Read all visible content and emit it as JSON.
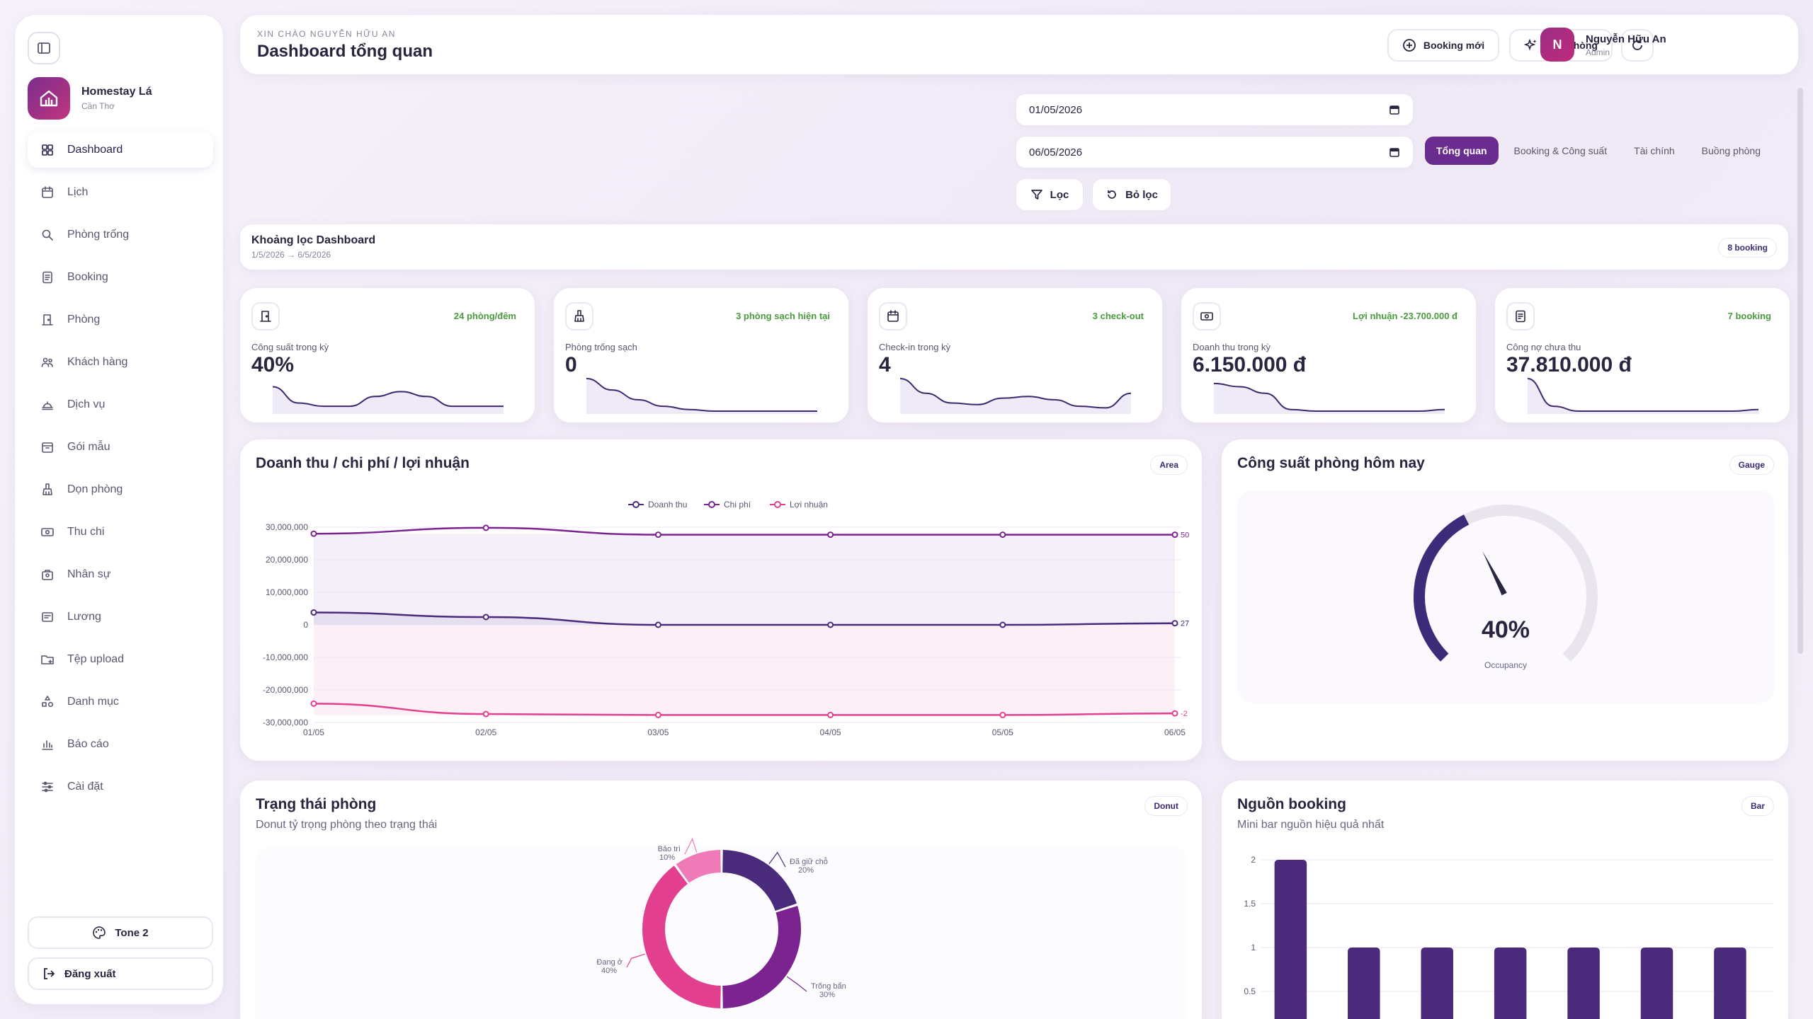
{
  "sidebar": {
    "brand_name": "Homestay Lá",
    "brand_sub": "Cần Thơ",
    "items": [
      {
        "label": "Dashboard",
        "icon": "grid-icon"
      },
      {
        "label": "Lịch",
        "icon": "calendar-icon"
      },
      {
        "label": "Phòng trống",
        "icon": "search-icon"
      },
      {
        "label": "Booking",
        "icon": "booking-icon"
      },
      {
        "label": "Phòng",
        "icon": "door-icon"
      },
      {
        "label": "Khách hàng",
        "icon": "users-icon"
      },
      {
        "label": "Dịch vụ",
        "icon": "service-icon"
      },
      {
        "label": "Gói mẫu",
        "icon": "package-icon"
      },
      {
        "label": "Dọn phòng",
        "icon": "cleaning-icon"
      },
      {
        "label": "Thu chi",
        "icon": "money-icon"
      },
      {
        "label": "Nhân sự",
        "icon": "staff-icon"
      },
      {
        "label": "Lương",
        "icon": "salary-icon"
      },
      {
        "label": "Tệp upload",
        "icon": "folder-icon"
      },
      {
        "label": "Danh mục",
        "icon": "shapes-icon"
      },
      {
        "label": "Báo cáo",
        "icon": "report-icon"
      },
      {
        "label": "Cài đặt",
        "icon": "sliders-icon"
      }
    ],
    "tone_label": "Tone 2",
    "logout_label": "Đăng xuất"
  },
  "header": {
    "greeting": "XIN CHÀO NGUYỄN HỮU AN",
    "title": "Dashboard tổng quan",
    "new_booking": "Booking mới",
    "cleaning": "Dọn phòng",
    "user_name": "Nguyễn Hữu An",
    "user_role": "Admin",
    "avatar_letter": "N"
  },
  "filters": {
    "date_from": "01/05/2026",
    "date_to": "06/05/2026",
    "filter_label": "Lọc",
    "reset_label": "Bỏ lọc",
    "tabs": [
      "Tổng quan",
      "Booking & Công suất",
      "Tài chính",
      "Buồng phòng"
    ],
    "active_tab": 0
  },
  "range": {
    "title": "Khoảng lọc Dashboard",
    "sub": "1/5/2026 → 6/5/2026",
    "badge": "8 booking"
  },
  "kpis": [
    {
      "label": "Công suất trong kỳ",
      "value": "40%",
      "note": "24 phòng/đêm",
      "icon": "door-icon"
    },
    {
      "label": "Phòng trống sạch",
      "value": "0",
      "note": "3 phòng sạch hiện tại",
      "icon": "cleaning-icon"
    },
    {
      "label": "Check-in trong kỳ",
      "value": "4",
      "note": "3 check-out",
      "icon": "calendar-icon"
    },
    {
      "label": "Doanh thu trong kỳ",
      "value": "6.150.000 đ",
      "note": "Lợi nhuận -23.700.000 đ",
      "icon": "money-icon"
    },
    {
      "label": "Công nợ chưa thu",
      "value": "37.810.000 đ",
      "note": "7 booking",
      "icon": "invoice-icon"
    }
  ],
  "revenue_card": {
    "title": "Doanh thu / chi phí / lợi nhuận",
    "badge": "Area"
  },
  "gauge_card": {
    "title": "Công suất phòng hôm nay",
    "badge": "Gauge",
    "value_text": "40%",
    "caption": "Occupancy"
  },
  "status_card": {
    "title": "Trạng thái phòng",
    "sub": "Donut tỷ trọng phòng theo trạng thái",
    "badge": "Donut"
  },
  "source_card": {
    "title": "Nguồn booking",
    "sub": "Mini bar nguồn hiệu quả nhất",
    "badge": "Bar"
  },
  "colors": {
    "accent": "#6a2c8e",
    "revenue": "#4a2a7a",
    "cost": "#7b2490",
    "profit": "#e2408f",
    "positive": "#4b9a3e"
  },
  "chart_data": [
    {
      "type": "area",
      "title": "Doanh thu / chi phí / lợi nhuận",
      "x": [
        "01/05",
        "02/05",
        "03/05",
        "04/05",
        "05/05",
        "06/05"
      ],
      "series": [
        {
          "name": "Doanh thu",
          "values": [
            3800000,
            2400000,
            0,
            0,
            0,
            500000
          ]
        },
        {
          "name": "Chi phí",
          "values": [
            28000000,
            29800000,
            27700000,
            27700000,
            27700000,
            27700000
          ]
        },
        {
          "name": "Lợi nhuận",
          "values": [
            -24200000,
            -27400000,
            -27700000,
            -27700000,
            -27700000,
            -27200000
          ]
        }
      ],
      "y_ticks": [
        "30,000,000",
        "20,000,000",
        "10,000,000",
        "0",
        "-10,000,000",
        "-20,000,000",
        "-30,000,000"
      ],
      "ylim": [
        -30000000,
        30000000
      ],
      "end_labels": [
        "27",
        "50",
        "-2"
      ],
      "legend": "top"
    },
    {
      "type": "gauge",
      "title": "Công suất phòng hôm nay",
      "value": 40,
      "max": 100
    },
    {
      "type": "pie",
      "title": "Trạng thái phòng",
      "slices": [
        {
          "label": "Đã giữ chỗ",
          "pct": "20%",
          "value": 20,
          "color": "#4a2a7a"
        },
        {
          "label": "Trống bẩn",
          "pct": "30%",
          "value": 30,
          "color": "#7b2490"
        },
        {
          "label": "Đang ở",
          "pct": "40%",
          "value": 40,
          "color": "#e2408f"
        },
        {
          "label": "Bảo trì",
          "pct": "10%",
          "value": 10,
          "color": "#f07ab8"
        }
      ]
    },
    {
      "type": "bar",
      "title": "Nguồn booking",
      "values": [
        2,
        1,
        1,
        1,
        1,
        1,
        1
      ],
      "y_ticks": [
        "2",
        "1.5",
        "1",
        "0.5"
      ],
      "ylim": [
        0,
        2
      ]
    }
  ]
}
